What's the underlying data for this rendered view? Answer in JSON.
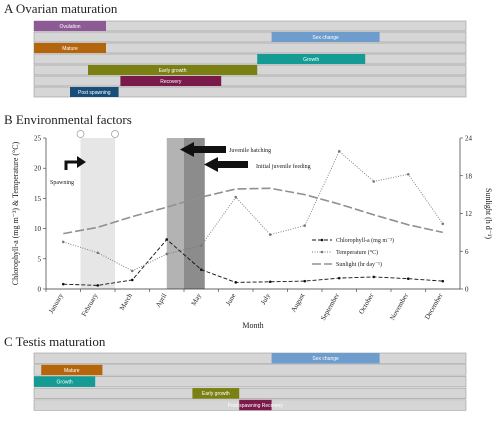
{
  "panels": {
    "ovarian_title": "A Ovarian maturation",
    "env_title": "B Environmental factors",
    "testis_title": "C Testis maturation"
  },
  "chart_data": [
    {
      "type": "gantt",
      "title": "A Ovarian maturation",
      "months": [
        "January",
        "February",
        "March",
        "April",
        "May",
        "June",
        "July",
        "August",
        "September",
        "October",
        "November",
        "December"
      ],
      "rows": [
        {
          "label": "Ovulation",
          "start": 0,
          "end": 2,
          "color": "#8e5a96"
        },
        {
          "label": "Sex change",
          "start": 6.6,
          "end": 9.6,
          "color": "#6e9ccc"
        },
        {
          "label": "Mature",
          "start": 0,
          "end": 2,
          "color": "#b5650c"
        },
        {
          "label": "Growth",
          "start": 6.2,
          "end": 9.2,
          "color": "#149b93"
        },
        {
          "label": "Early growth",
          "start": 1.5,
          "end": 6.2,
          "color": "#7a8112"
        },
        {
          "label": "Recovery",
          "start": 2.4,
          "end": 5.2,
          "color": "#7a1a4a"
        },
        {
          "label": "Post spawning",
          "start": 1,
          "end": 2.35,
          "color": "#1a4e7a"
        }
      ]
    },
    {
      "type": "line",
      "title": "B Environmental factors",
      "xlabel": "Month",
      "ylabel_left": "Chlorophyll-a (mg m⁻³) & Temperature (°C)",
      "ylabel_right": "Sunlight (h d⁻¹)",
      "x": [
        "January",
        "February",
        "March",
        "April",
        "May",
        "June",
        "July",
        "August",
        "September",
        "October",
        "November",
        "December"
      ],
      "ylim_left": [
        0,
        25
      ],
      "ylim_right": [
        0,
        24
      ],
      "left_ticks": [
        0,
        5,
        10,
        15,
        20,
        25
      ],
      "right_ticks": [
        0,
        6,
        12,
        18,
        24
      ],
      "series": [
        {
          "name": "Chlorophyll-a (mg m⁻³)",
          "axis": "left",
          "color": "#111111",
          "dash": "4,2",
          "values": [
            0.8,
            0.6,
            1.5,
            8.2,
            3.2,
            1.1,
            1.2,
            1.3,
            1.8,
            2.0,
            1.7,
            1.3
          ]
        },
        {
          "name": "Temperature (°C)",
          "axis": "left",
          "color": "#777777",
          "dash": "1,1.5",
          "values": [
            7.8,
            6.0,
            3.0,
            5.8,
            7.2,
            15.2,
            9.0,
            10.5,
            22.8,
            17.8,
            19.0,
            10.8
          ]
        },
        {
          "name": "Sunlight (hr day⁻¹)",
          "axis": "right",
          "color": "#909090",
          "dash": "9,3",
          "values": [
            8.8,
            9.8,
            11.5,
            13.0,
            14.6,
            15.9,
            16.0,
            15.0,
            13.5,
            11.8,
            10.2,
            9.0
          ]
        }
      ],
      "shaded_periods": [
        {
          "label": "Spawning",
          "start": 1,
          "end": 2,
          "color": "#e6e6e6"
        },
        {
          "label": "Juvenile hatching",
          "start": 3.5,
          "end": 4.6,
          "color": "#b3b3b3"
        },
        {
          "label": "Initial juvenile feeding",
          "start": 4,
          "end": 4.6,
          "color": "#8c8c8c"
        }
      ],
      "annotations": [
        "Spawning",
        "Juvenile hatching",
        "Initial juvenile feeding"
      ]
    },
    {
      "type": "gantt",
      "title": "C Testis maturation",
      "months": [
        "January",
        "February",
        "March",
        "April",
        "May",
        "June",
        "July",
        "August",
        "September",
        "October",
        "November",
        "December"
      ],
      "rows": [
        {
          "label": "Sex change",
          "start": 6.6,
          "end": 9.6,
          "color": "#6e9ccc"
        },
        {
          "label": "Mature",
          "start": 0.2,
          "end": 1.9,
          "color": "#b5650c"
        },
        {
          "label": "Growth",
          "start": 0,
          "end": 1.7,
          "color": "#149b93"
        },
        {
          "label": "Early growth",
          "start": 4.4,
          "end": 5.7,
          "color": "#7a8112"
        },
        {
          "label": "Post spawning Recovery",
          "start": 5.7,
          "end": 6.6,
          "color": "#7a1a4a"
        }
      ]
    }
  ]
}
